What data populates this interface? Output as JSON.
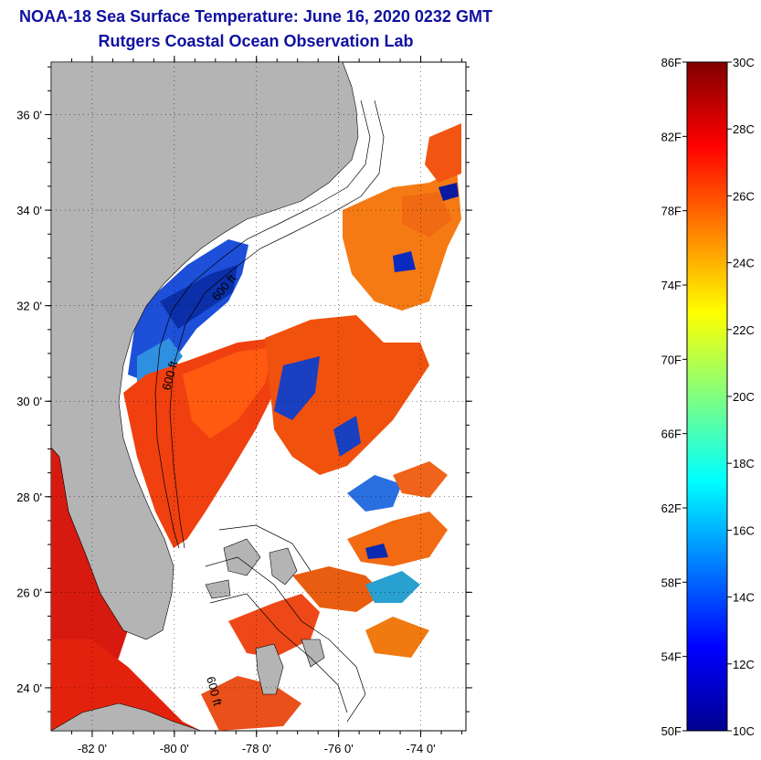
{
  "title": {
    "line1": "NOAA-18 Sea Surface Temperature:  June 16, 2020 0232 GMT",
    "line2": "Rutgers Coastal Ocean Observation Lab"
  },
  "map": {
    "lat_labels": [
      "36 0'",
      "34 0'",
      "32 0'",
      "30 0'",
      "28 0'",
      "26 0'",
      "24 0'"
    ],
    "lat_values": [
      36,
      34,
      32,
      30,
      28,
      26,
      24
    ],
    "lon_labels": [
      "-82 0'",
      "-80 0'",
      "-78 0'",
      "-76 0'",
      "-74 0'"
    ],
    "lon_values": [
      -82,
      -80,
      -78,
      -76,
      -74
    ],
    "lat_range": [
      23.1,
      37.1
    ],
    "lon_range": [
      -83,
      -72.9
    ],
    "isobath_labels": [
      "600 ft",
      "600 ft",
      "600 ft"
    ],
    "land_color": "#b4b4b4",
    "cloud_color": "#ffffff"
  },
  "colorbar": {
    "fahrenheit_labels": [
      "86F",
      "82F",
      "78F",
      "74F",
      "70F",
      "66F",
      "62F",
      "58F",
      "54F",
      "50F"
    ],
    "celsius_labels": [
      "30C",
      "28C",
      "26C",
      "24C",
      "22C",
      "20C",
      "18C",
      "16C",
      "14C",
      "12C",
      "10C"
    ],
    "range_c": [
      10,
      30
    ],
    "colormap": "jet"
  }
}
